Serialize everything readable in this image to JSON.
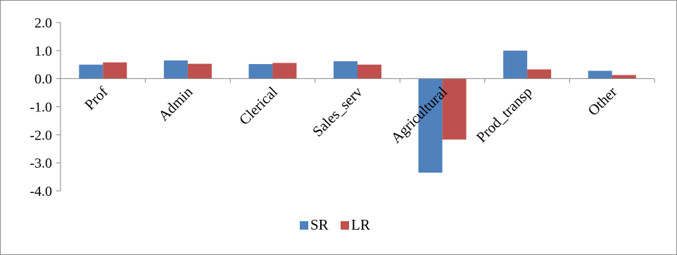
{
  "chart_data": {
    "type": "bar",
    "categories": [
      "Prof",
      "Admin",
      "Clerical",
      "Sales_serv",
      "Agricultural",
      "Prod_transp",
      "Other"
    ],
    "series": [
      {
        "name": "SR",
        "values": [
          0.5,
          0.65,
          0.52,
          0.62,
          -3.35,
          1.0,
          0.28
        ],
        "color": "#4F81BD"
      },
      {
        "name": "LR",
        "values": [
          0.58,
          0.53,
          0.56,
          0.5,
          -2.17,
          0.33,
          0.13
        ],
        "color": "#C0504D"
      }
    ],
    "ylim": [
      -4.0,
      2.0
    ],
    "yticks": [
      "-4.0",
      "-3.0",
      "-2.0",
      "-1.0",
      "0.0",
      "1.0",
      "2.0"
    ],
    "title": "",
    "xlabel": "",
    "ylabel": "",
    "grid": false,
    "legend_position": "bottom"
  }
}
